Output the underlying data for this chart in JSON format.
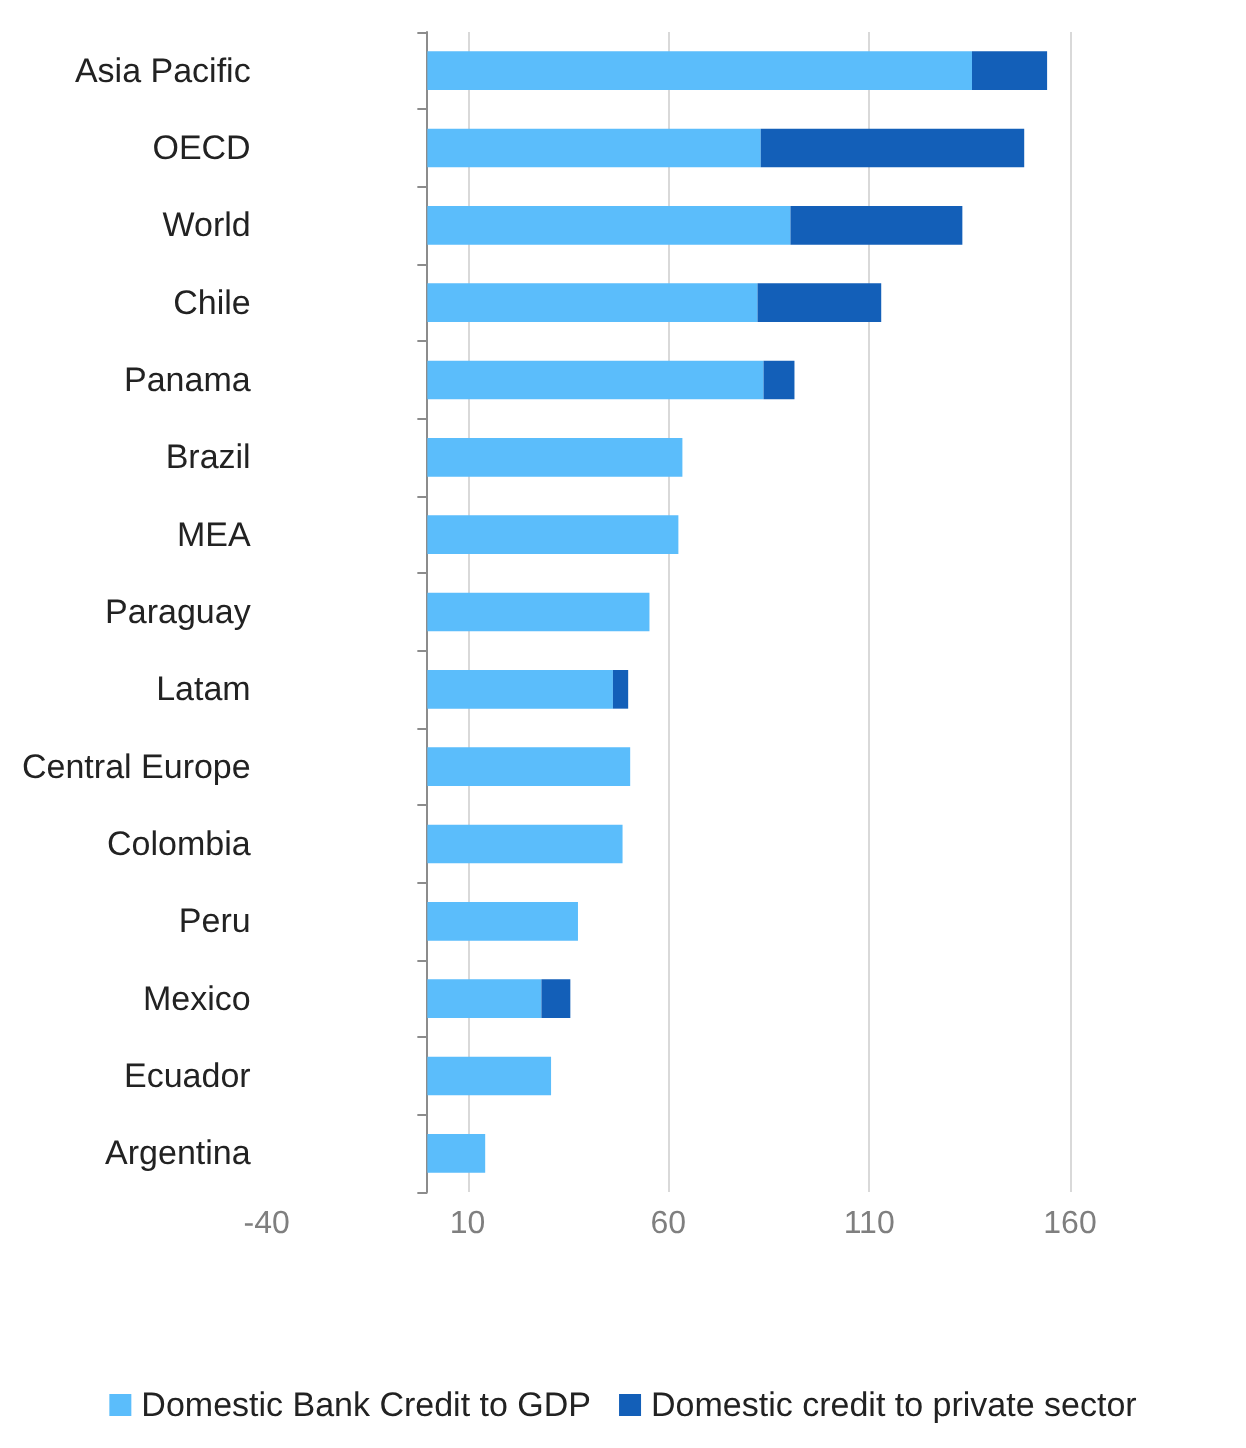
{
  "chart_data": {
    "type": "bar",
    "orientation": "horizontal",
    "stacked": true,
    "categories": [
      "Asia Pacific",
      "OECD",
      "World",
      "Chile",
      "Panama",
      "Brazil",
      "MEA",
      "Paraguay",
      "Latam",
      "Central Europe",
      "Colombia",
      "Peru",
      "Mexico",
      "Ecuador",
      "Argentina"
    ],
    "series": [
      {
        "name": "Domestic Bank Credit to GDP",
        "color": "#5bbdfb",
        "values": [
          135.6,
          83,
          90.4,
          82.2,
          83.7,
          63.5,
          62.5,
          55.3,
          46.2,
          50.5,
          48.6,
          37.5,
          28.4,
          30.8,
          14.4
        ]
      },
      {
        "name": "Domestic credit to private sector",
        "color": "#135fb8",
        "values": [
          18.7,
          65.6,
          42.8,
          30.8,
          7.7,
          null,
          null,
          null,
          3.8,
          null,
          null,
          null,
          7.2,
          null,
          null
        ]
      }
    ],
    "xlim": [
      -40,
      160
    ],
    "xticks": [
      -40,
      10,
      60,
      110,
      160
    ],
    "grid": "x",
    "legend": "bottom"
  }
}
